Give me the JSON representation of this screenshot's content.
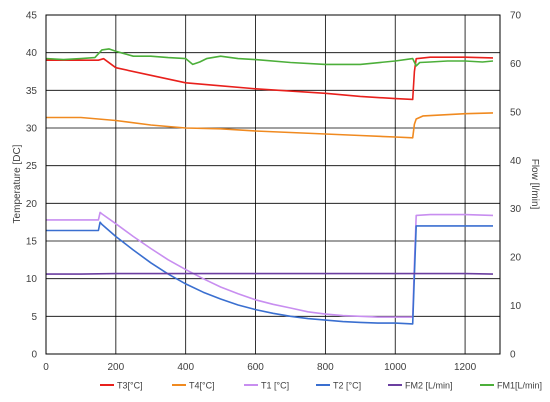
{
  "chart_data": {
    "type": "line",
    "ylabel": "Temperature [DC]",
    "y2label": "Flow [l/min]",
    "xlim": [
      0,
      1300
    ],
    "ylim": [
      0,
      45
    ],
    "y2lim": [
      0,
      70
    ],
    "xticks": [
      0,
      200,
      400,
      600,
      800,
      1000,
      1200
    ],
    "yticks": [
      0,
      5,
      10,
      15,
      20,
      25,
      30,
      35,
      40,
      45
    ],
    "y2ticks": [
      0,
      10,
      20,
      30,
      40,
      50,
      60,
      70
    ],
    "grid": true,
    "legend_position": "bottom",
    "series": [
      {
        "name": "T3[°C]",
        "axis": "left",
        "color": "#e8201c",
        "x": [
          0,
          150,
          165,
          200,
          300,
          400,
          500,
          600,
          700,
          800,
          900,
          1000,
          1050,
          1055,
          1060,
          1100,
          1200,
          1280
        ],
        "y": [
          39.0,
          39.0,
          39.2,
          38.0,
          37.0,
          36.0,
          35.6,
          35.2,
          34.9,
          34.6,
          34.2,
          33.9,
          33.8,
          37.5,
          39.2,
          39.4,
          39.4,
          39.3
        ]
      },
      {
        "name": "T4[°C]",
        "axis": "left",
        "color": "#f08a20",
        "x": [
          0,
          100,
          200,
          300,
          400,
          500,
          600,
          700,
          800,
          900,
          1000,
          1050,
          1055,
          1060,
          1080,
          1200,
          1280
        ],
        "y": [
          31.4,
          31.4,
          31.0,
          30.4,
          30.0,
          29.9,
          29.6,
          29.4,
          29.2,
          29.0,
          28.8,
          28.7,
          30.5,
          31.2,
          31.6,
          31.9,
          32.0
        ]
      },
      {
        "name": "T1 [°C]",
        "axis": "left",
        "color": "#c88ef0",
        "x": [
          0,
          150,
          155,
          160,
          200,
          250,
          300,
          350,
          400,
          450,
          500,
          550,
          600,
          650,
          700,
          750,
          800,
          850,
          900,
          950,
          1000,
          1050,
          1055,
          1060,
          1100,
          1200,
          1280
        ],
        "y": [
          17.8,
          17.8,
          18.8,
          18.6,
          17.3,
          15.6,
          14.0,
          12.5,
          11.2,
          10.0,
          8.9,
          8.0,
          7.2,
          6.6,
          6.1,
          5.6,
          5.3,
          5.1,
          5.0,
          4.9,
          4.9,
          4.9,
          12.0,
          18.4,
          18.5,
          18.5,
          18.4
        ]
      },
      {
        "name": "T2 [°C]",
        "axis": "left",
        "color": "#3a6fd0",
        "x": [
          0,
          150,
          155,
          160,
          200,
          250,
          300,
          350,
          400,
          450,
          500,
          550,
          600,
          650,
          700,
          750,
          800,
          850,
          900,
          950,
          1000,
          1050,
          1055,
          1060,
          1100,
          1200,
          1280
        ],
        "y": [
          16.4,
          16.4,
          17.5,
          17.2,
          15.6,
          13.8,
          12.1,
          10.6,
          9.3,
          8.2,
          7.3,
          6.5,
          5.9,
          5.4,
          5.0,
          4.7,
          4.5,
          4.3,
          4.2,
          4.1,
          4.1,
          4.0,
          10.5,
          17.0,
          17.0,
          17.0,
          17.0
        ]
      },
      {
        "name": "FM2 [L/min]",
        "axis": "right",
        "color": "#6b3fa0",
        "x": [
          0,
          100,
          200,
          300,
          400,
          500,
          600,
          700,
          800,
          900,
          1000,
          1100,
          1200,
          1280
        ],
        "y": [
          16.5,
          16.5,
          16.6,
          16.6,
          16.6,
          16.6,
          16.6,
          16.6,
          16.6,
          16.6,
          16.6,
          16.6,
          16.6,
          16.5
        ]
      },
      {
        "name": "FM1[L/min]",
        "axis": "right",
        "color": "#4caf3a",
        "x": [
          0,
          50,
          100,
          140,
          160,
          180,
          200,
          250,
          300,
          350,
          400,
          420,
          440,
          460,
          500,
          550,
          600,
          700,
          800,
          900,
          1000,
          1050,
          1060,
          1070,
          1100,
          1150,
          1200,
          1250,
          1280
        ],
        "y": [
          61.0,
          60.8,
          61.0,
          61.2,
          62.8,
          63.0,
          62.5,
          61.5,
          61.5,
          61.2,
          61.0,
          59.8,
          60.3,
          61.0,
          61.5,
          61.0,
          60.8,
          60.2,
          59.8,
          59.8,
          60.5,
          61.0,
          59.5,
          60.2,
          60.3,
          60.5,
          60.5,
          60.3,
          60.5
        ]
      }
    ]
  }
}
